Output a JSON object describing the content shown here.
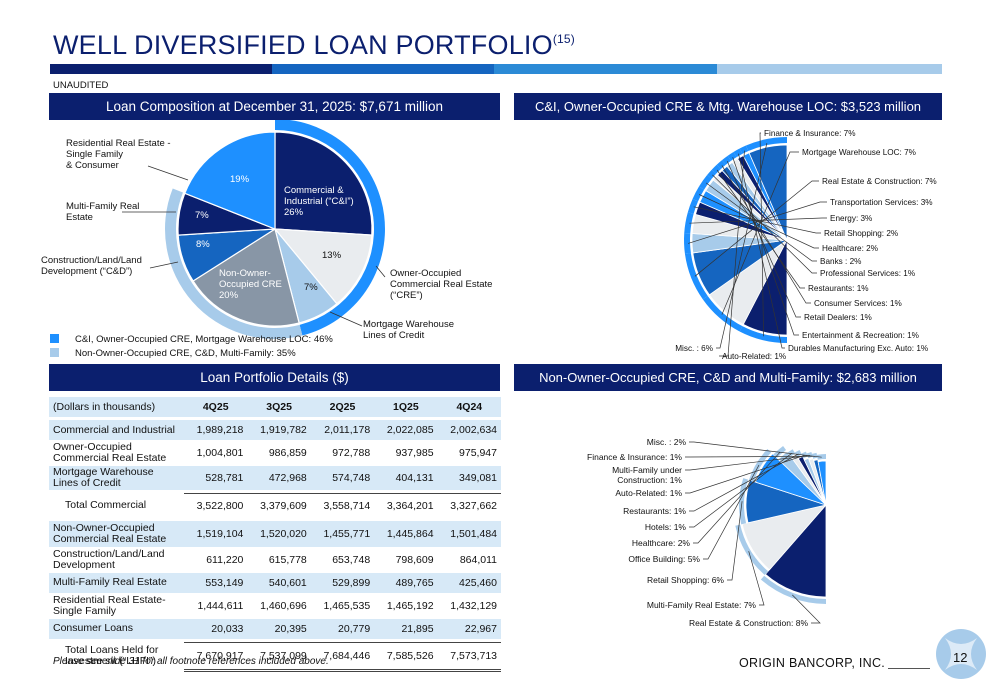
{
  "header": {
    "title": "WELL DIVERSIFIED LOAN PORTFOLIO",
    "footnote_ref": "(15)",
    "unaudited": "UNAUDITED",
    "stripe_colors": [
      "#0b1f6e",
      "#1565c0",
      "#2b8ad6",
      "#a7cbea"
    ]
  },
  "panels": {
    "composition_title": "Loan Composition at December 31, 2025: $7,671 million",
    "cni_title": "C&I, Owner-Occupied CRE & Mtg. Warehouse LOC: $3,523 million",
    "details_title": "Loan Portfolio Details ($)",
    "noncre_title": "Non-Owner-Occupied CRE, C&D and Multi-Family: $2,683 million"
  },
  "chart_data": [
    {
      "type": "pie",
      "title": "Loan Composition at December 31, 2025: $7,671 million",
      "slices": [
        {
          "label": "Commercial & Industrial (“C&I”)",
          "value": 26,
          "value_label": "26%",
          "color": "#0b1f6e",
          "group": 1
        },
        {
          "label": "Owner-Occupied Commercial Real Estate (“CRE”)",
          "value": 13,
          "value_label": "13%",
          "color": "#e9ecef",
          "group": 1
        },
        {
          "label": "Mortgage Warehouse Lines of Credit",
          "value": 7,
          "value_label": "7%",
          "color": "#a7cbea",
          "group": 1
        },
        {
          "label": "Non-Owner-Occupied CRE",
          "value": 20,
          "value_label": "20%",
          "color": "#8896a6",
          "group": 2
        },
        {
          "label": "Construction/Land/Land Development (“C&D”)",
          "value": 8,
          "value_label": "8%",
          "color": "#1565c0",
          "group": 2
        },
        {
          "label": "Multi-Family Real Estate",
          "value": 7,
          "value_label": "7%",
          "color": "#0b1f6e",
          "group": 2
        },
        {
          "label": "Residential Real Estate - Single Family & Consumer",
          "value": 19,
          "value_label": "19%",
          "color": "#1e90ff",
          "group": 0
        }
      ],
      "ring_colors": {
        "group1": "#1e90ff",
        "group2": "#a7cbea"
      },
      "legend": [
        {
          "label": "C&I, Owner-Occupied CRE, Mortgage Warehouse LOC: 46%",
          "color": "#1e90ff"
        },
        {
          "label": "Non-Owner-Occupied CRE, C&D, Multi-Family: 35%",
          "color": "#a7cbea"
        }
      ]
    },
    {
      "type": "pie",
      "title": "C&I, Owner-Occupied CRE & Mtg. Warehouse LOC: $3,523 million",
      "slices": [
        {
          "label": "Finance & Insurance: 7%",
          "value": 7,
          "color": "#0b1f6e"
        },
        {
          "label": "Mortgage Warehouse LOC: 7%",
          "value": 7,
          "color": "#e9ecef"
        },
        {
          "label": "Real Estate & Construction: 7%",
          "value": 7,
          "color": "#1565c0"
        },
        {
          "label": "Transportation Services: 3%",
          "value": 3,
          "color": "#a7cbea"
        },
        {
          "label": "Energy: 3%",
          "value": 3,
          "color": "#e9ecef"
        },
        {
          "label": "Retail Shopping: 2%",
          "value": 2,
          "color": "#0b1f6e"
        },
        {
          "label": "Healthcare: 2%",
          "value": 2,
          "color": "#1e90ff"
        },
        {
          "label": "Banks : 2%",
          "value": 2,
          "color": "#a7cbea"
        },
        {
          "label": "Professional Services: 1%",
          "value": 1,
          "color": "#e9ecef"
        },
        {
          "label": "Restaurants: 1%",
          "value": 1,
          "color": "#0b1f6e"
        },
        {
          "label": "Consumer Services: 1%",
          "value": 1,
          "color": "#1565c0"
        },
        {
          "label": "Retail Dealers: 1%",
          "value": 1,
          "color": "#a7cbea"
        },
        {
          "label": "Entertainment & Recreation: 1%",
          "value": 1,
          "color": "#e9ecef"
        },
        {
          "label": "Durables Manufacturing Exc. Auto: 1%",
          "value": 1,
          "color": "#0b1f6e"
        },
        {
          "label": "Auto-Related: 1%",
          "value": 1,
          "color": "#1e90ff"
        },
        {
          "label": "Misc. : 6%",
          "value": 6,
          "color": "#1565c0"
        }
      ]
    },
    {
      "type": "pie",
      "title": "Non-Owner-Occupied CRE, C&D and Multi-Family: $2,683 million",
      "slices": [
        {
          "label": "Real Estate & Construction: 8%",
          "value": 8,
          "color": "#0b1f6e"
        },
        {
          "label": "Multi-Family Real Estate: 7%",
          "value": 7,
          "color": "#e9ecef"
        },
        {
          "label": "Retail Shopping: 6%",
          "value": 6,
          "color": "#1565c0"
        },
        {
          "label": "Office Building: 5%",
          "value": 5,
          "color": "#1e90ff"
        },
        {
          "label": "Healthcare: 2%",
          "value": 2,
          "color": "#a7cbea"
        },
        {
          "label": "Hotels: 1%",
          "value": 1,
          "color": "#e9ecef"
        },
        {
          "label": "Restaurants: 1%",
          "value": 1,
          "color": "#0b1f6e"
        },
        {
          "label": "Auto-Related: 1%",
          "value": 1,
          "color": "#a7cbea"
        },
        {
          "label": "Multi-Family under Construction: 1%",
          "value": 1,
          "color": "#e9ecef"
        },
        {
          "label": "Finance & Insurance: 1%",
          "value": 1,
          "color": "#1565c0"
        },
        {
          "label": "Misc. : 2%",
          "value": 2,
          "color": "#1e90ff"
        }
      ]
    },
    {
      "type": "table",
      "title": "Loan Portfolio Details ($)",
      "columns": [
        "(Dollars in thousands)",
        "4Q25",
        "3Q25",
        "2Q25",
        "1Q25",
        "4Q24"
      ],
      "rows": [
        {
          "label": "Commercial and Industrial",
          "values": [
            "1,989,218",
            "1,919,782",
            "2,011,178",
            "2,022,085",
            "2,002,634"
          ]
        },
        {
          "label": "Owner-Occupied Commercial Real Estate",
          "values": [
            "1,004,801",
            "986,859",
            "972,788",
            "937,985",
            "975,947"
          ]
        },
        {
          "label": "Mortgage Warehouse Lines of Credit",
          "values": [
            "528,781",
            "472,968",
            "574,748",
            "404,131",
            "349,081"
          ]
        },
        {
          "label": "Total Commercial",
          "values": [
            "3,522,800",
            "3,379,609",
            "3,558,714",
            "3,364,201",
            "3,327,662"
          ]
        },
        {
          "label": "Non-Owner-Occupied Commercial Real Estate",
          "values": [
            "1,519,104",
            "1,520,020",
            "1,455,771",
            "1,445,864",
            "1,501,484"
          ]
        },
        {
          "label": "Construction/Land/Land Development",
          "values": [
            "611,220",
            "615,778",
            "653,748",
            "798,609",
            "864,011"
          ]
        },
        {
          "label": "Multi-Family Real Estate",
          "values": [
            "553,149",
            "540,601",
            "529,899",
            "489,765",
            "425,460"
          ]
        },
        {
          "label": "Residential Real Estate-Single Family",
          "values": [
            "1,444,611",
            "1,460,696",
            "1,465,535",
            "1,465,192",
            "1,432,129"
          ]
        },
        {
          "label": "Consumer Loans",
          "values": [
            "20,033",
            "20,395",
            "20,779",
            "21,895",
            "22,967"
          ]
        },
        {
          "label": "Total Loans Held for Investment (“LHFI”)",
          "values": [
            "7,670,917",
            "7,537,099",
            "7,684,446",
            "7,585,526",
            "7,573,713"
          ]
        }
      ]
    }
  ],
  "comp_labels": {
    "residential": [
      "Residential Real Estate -",
      "Single Family",
      "& Consumer"
    ],
    "multifamily": [
      "Multi-Family Real",
      "Estate"
    ],
    "cnd": [
      "Construction/Land/Land",
      "Development (“C&D”)"
    ],
    "owner_cre": [
      "Owner-Occupied",
      "Commercial Real Estate",
      "(“CRE”)"
    ],
    "warehouse": [
      "Mortgage Warehouse",
      "Lines of Credit"
    ],
    "cni_inner": [
      "Commercial &",
      "Industrial (“C&I”)",
      "26%"
    ],
    "nonowner_inner": [
      "Non-Owner-",
      "Occupied CRE",
      "20%"
    ]
  },
  "footer": {
    "footnote": "Please see slide 31 for all footnote references included above.",
    "company": "ORIGIN BANCORP, INC.",
    "page_number": "12"
  }
}
